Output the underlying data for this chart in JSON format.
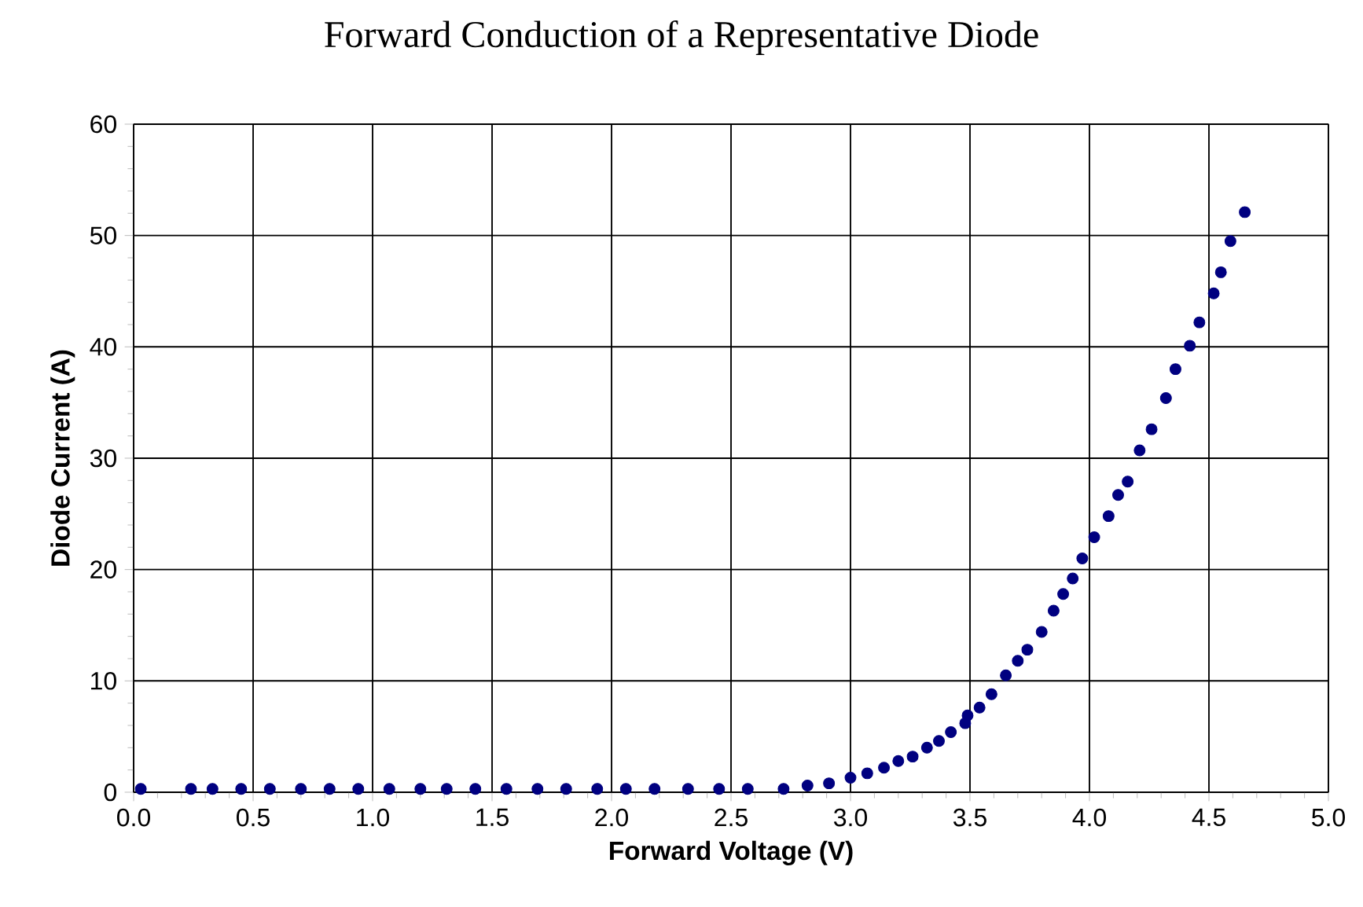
{
  "chart_data": {
    "type": "scatter",
    "title": "Forward Conduction of a Representative Diode",
    "xlabel": "Forward Voltage (V)",
    "ylabel": "Diode Current (A)",
    "x": [
      0.03,
      0.24,
      0.33,
      0.45,
      0.57,
      0.7,
      0.82,
      0.94,
      1.07,
      1.2,
      1.31,
      1.43,
      1.56,
      1.69,
      1.81,
      1.94,
      2.06,
      2.18,
      2.32,
      2.45,
      2.57,
      2.72,
      2.82,
      2.91,
      3.0,
      3.07,
      3.14,
      3.2,
      3.26,
      3.32,
      3.37,
      3.42,
      3.48,
      3.49,
      3.54,
      3.59,
      3.65,
      3.7,
      3.74,
      3.8,
      3.85,
      3.89,
      3.93,
      3.97,
      4.02,
      4.08,
      4.12,
      4.16,
      4.21,
      4.26,
      4.32,
      4.36,
      4.42,
      4.46,
      4.52,
      4.55,
      4.59,
      4.65
    ],
    "series": [
      {
        "color": "#000080",
        "values": [
          0.3,
          0.3,
          0.3,
          0.3,
          0.3,
          0.3,
          0.3,
          0.3,
          0.3,
          0.3,
          0.3,
          0.3,
          0.3,
          0.3,
          0.3,
          0.3,
          0.3,
          0.3,
          0.3,
          0.3,
          0.3,
          0.3,
          0.6,
          0.8,
          1.3,
          1.7,
          2.2,
          2.8,
          3.2,
          4.0,
          4.6,
          5.4,
          6.2,
          6.9,
          7.6,
          8.8,
          10.5,
          11.8,
          12.8,
          14.4,
          16.3,
          17.8,
          19.2,
          21.0,
          22.9,
          24.8,
          26.7,
          27.9,
          30.7,
          32.6,
          35.4,
          38.0,
          40.1,
          42.2,
          44.8,
          46.7,
          49.5,
          52.1
        ]
      }
    ],
    "xlim": [
      0,
      5
    ],
    "ylim": [
      0,
      60
    ],
    "xticks": [
      {
        "value": 0,
        "label": "0.0"
      },
      {
        "value": 0.5,
        "label": "0.5"
      },
      {
        "value": 1,
        "label": "1.0"
      },
      {
        "value": 1.5,
        "label": "1.5"
      },
      {
        "value": 2,
        "label": "2.0"
      },
      {
        "value": 2.5,
        "label": "2.5"
      },
      {
        "value": 3,
        "label": "3.0"
      },
      {
        "value": 3.5,
        "label": "3.5"
      },
      {
        "value": 4,
        "label": "4.0"
      },
      {
        "value": 4.5,
        "label": "4.5"
      },
      {
        "value": 5,
        "label": "5.0"
      }
    ],
    "yticks": [
      0,
      10,
      20,
      30,
      40,
      50,
      60
    ],
    "grid": true,
    "marker": "circle"
  }
}
